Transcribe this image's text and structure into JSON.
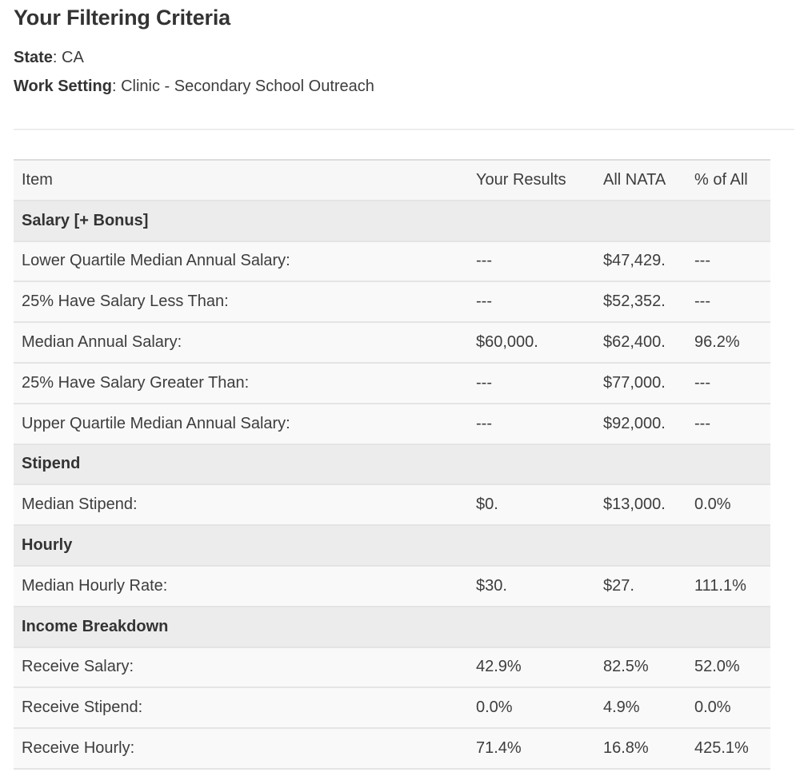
{
  "page": {
    "title": "Your Filtering Criteria"
  },
  "criteria": {
    "separator": ": ",
    "items": [
      {
        "label": "State",
        "value": "CA"
      },
      {
        "label": "Work Setting",
        "value": "Clinic - Secondary School Outreach"
      }
    ]
  },
  "table": {
    "header": {
      "item": "Item",
      "your": "Your Results",
      "nata": "All NATA",
      "pct": "% of All"
    },
    "rows": [
      {
        "type": "section",
        "label": "Salary [+ Bonus]"
      },
      {
        "type": "data",
        "label": "Lower Quartile Median Annual Salary:",
        "your": "---",
        "nata": "$47,429.",
        "pct": "---"
      },
      {
        "type": "data",
        "label": "25% Have Salary Less Than:",
        "your": "---",
        "nata": "$52,352.",
        "pct": "---"
      },
      {
        "type": "data",
        "label": "Median Annual Salary:",
        "your": "$60,000.",
        "nata": "$62,400.",
        "pct": "96.2%"
      },
      {
        "type": "data",
        "label": "25% Have Salary Greater Than:",
        "your": "---",
        "nata": "$77,000.",
        "pct": "---"
      },
      {
        "type": "data",
        "label": "Upper Quartile Median Annual Salary:",
        "your": "---",
        "nata": "$92,000.",
        "pct": "---"
      },
      {
        "type": "section",
        "label": "Stipend"
      },
      {
        "type": "data",
        "label": "Median Stipend:",
        "your": "$0.",
        "nata": "$13,000.",
        "pct": "0.0%"
      },
      {
        "type": "section",
        "label": "Hourly"
      },
      {
        "type": "data",
        "label": "Median Hourly Rate:",
        "your": "$30.",
        "nata": "$27.",
        "pct": "111.1%"
      },
      {
        "type": "section",
        "label": "Income Breakdown"
      },
      {
        "type": "data",
        "label": "Receive Salary:",
        "your": "42.9%",
        "nata": "82.5%",
        "pct": "52.0%"
      },
      {
        "type": "data",
        "label": "Receive Stipend:",
        "your": "0.0%",
        "nata": "4.9%",
        "pct": "0.0%"
      },
      {
        "type": "data",
        "label": "Receive Hourly:",
        "your": "71.4%",
        "nata": "16.8%",
        "pct": "425.1%"
      }
    ]
  },
  "colors": {
    "text": "#3d3d3d",
    "heading": "#333333",
    "row_bg": "#f9f9f9",
    "header_bg": "#f7f7f7",
    "section_bg": "#ececec",
    "border": "#e4e4e4"
  }
}
